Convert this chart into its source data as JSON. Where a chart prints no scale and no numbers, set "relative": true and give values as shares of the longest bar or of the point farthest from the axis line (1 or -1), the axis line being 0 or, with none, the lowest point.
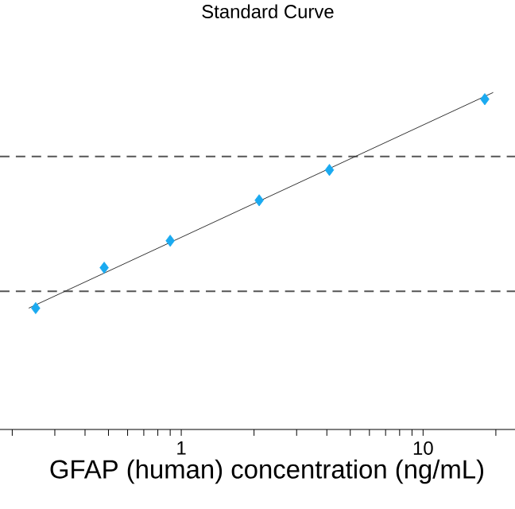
{
  "chart_data": {
    "type": "scatter",
    "title": "Standard Curve",
    "xlabel": "GFAP (human) concentration (ng/mL)",
    "log": "x",
    "relative": true,
    "grid": false,
    "tick_labels": "x",
    "xlim": [
      0.178,
      24
    ],
    "xticks": [
      {
        "value": 0.2,
        "label": null
      },
      {
        "value": 0.3,
        "label": null
      },
      {
        "value": 0.4,
        "label": null
      },
      {
        "value": 0.5,
        "label": null
      },
      {
        "value": 0.6,
        "label": null
      },
      {
        "value": 0.7,
        "label": null
      },
      {
        "value": 0.8,
        "label": null
      },
      {
        "value": 0.9,
        "label": null
      },
      1,
      {
        "value": 2,
        "label": null
      },
      {
        "value": 3,
        "label": null
      },
      {
        "value": 4,
        "label": null
      },
      {
        "value": 5,
        "label": null
      },
      {
        "value": 6,
        "label": null
      },
      {
        "value": 7,
        "label": null
      },
      {
        "value": 8,
        "label": null
      },
      {
        "value": 9,
        "label": null
      },
      10,
      {
        "value": 20,
        "label": null
      }
    ],
    "series": [
      {
        "color": "#1aaaf0",
        "marker": "diamond",
        "x": [
          0.25,
          0.48,
          0.9,
          2.1,
          4.1,
          18
        ],
        "values": [
          0.36,
          0.48,
          0.56,
          0.68,
          0.77,
          0.98
        ]
      },
      {
        "type": "line",
        "color": "#333333",
        "line_style": "solid",
        "x": [
          0.234,
          19.5
        ],
        "values": [
          0.36,
          1
        ]
      }
    ],
    "ref_lines": [
      {
        "axis": "y",
        "value": 0.81,
        "color": "#555555",
        "line_style": "dashed"
      },
      {
        "axis": "y",
        "value": 0.41,
        "color": "#555555",
        "line_style": "dashed"
      }
    ]
  }
}
